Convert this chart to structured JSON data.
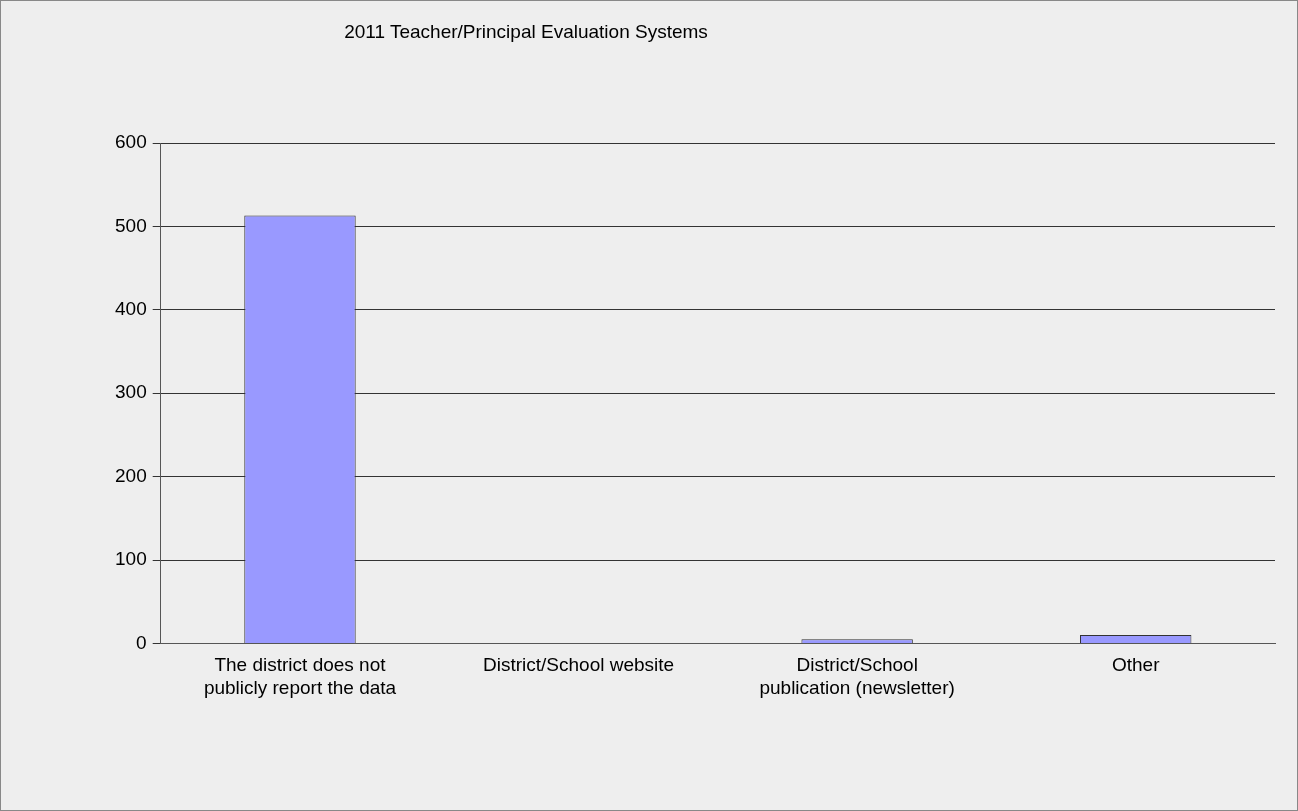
{
  "chart_data": {
    "type": "bar",
    "title": "2011 Teacher/Principal Evaluation Systems",
    "categories": [
      [
        "The district does not",
        "publicly report the data"
      ],
      "District/School website",
      [
        "District/School",
        "publication (newsletter)"
      ],
      "Other"
    ],
    "values": [
      513,
      0,
      5,
      10
    ],
    "color": "#9999ff",
    "ylim": [
      0,
      600
    ],
    "yticks": [
      0,
      100,
      200,
      300,
      400,
      500,
      600
    ],
    "grid": "y"
  }
}
